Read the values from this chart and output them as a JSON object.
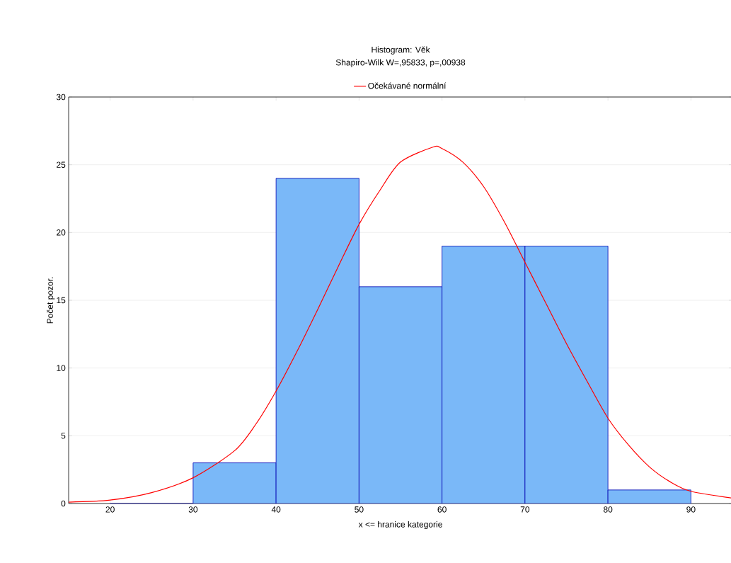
{
  "chart_data": {
    "type": "histogram",
    "title": "Histogram: Věk",
    "subtitle": "Shapiro-Wilk W=,95833, p=,00938",
    "xlabel": "x <= hranice kategorie",
    "ylabel": "Počet pozor.",
    "bins": [
      20,
      30,
      40,
      50,
      60,
      70,
      80,
      90
    ],
    "values": [
      0,
      3,
      24,
      16,
      19,
      19,
      1
    ],
    "color": "#7ab8f8",
    "series": [
      {
        "name": "Očekávané normální",
        "type": "line",
        "color": "#ff0000",
        "x": [
          15,
          20,
          25,
          30,
          35,
          37.5,
          40,
          42.5,
          45,
          47.5,
          50,
          52.5,
          55,
          58.9,
          60,
          62.5,
          65,
          67.5,
          70,
          72.5,
          75,
          77.5,
          80,
          82.5,
          85,
          87.5,
          90,
          95
        ],
        "values": [
          0.1,
          0.25,
          0.8,
          1.9,
          3.9,
          5.8,
          8.3,
          11.2,
          14.3,
          17.5,
          20.6,
          23.1,
          25.2,
          26.3,
          26.2,
          25.2,
          23.4,
          20.8,
          17.8,
          14.8,
          11.8,
          9.0,
          6.3,
          4.3,
          2.7,
          1.6,
          0.9,
          0.4
        ]
      }
    ],
    "xlim": [
      15,
      95
    ],
    "ylim": [
      0,
      30
    ],
    "xticks": [
      20,
      30,
      40,
      50,
      60,
      70,
      80,
      90
    ],
    "yticks": [
      0,
      5,
      10,
      15,
      20,
      25,
      30
    ],
    "grid": "y",
    "legend": "top"
  }
}
